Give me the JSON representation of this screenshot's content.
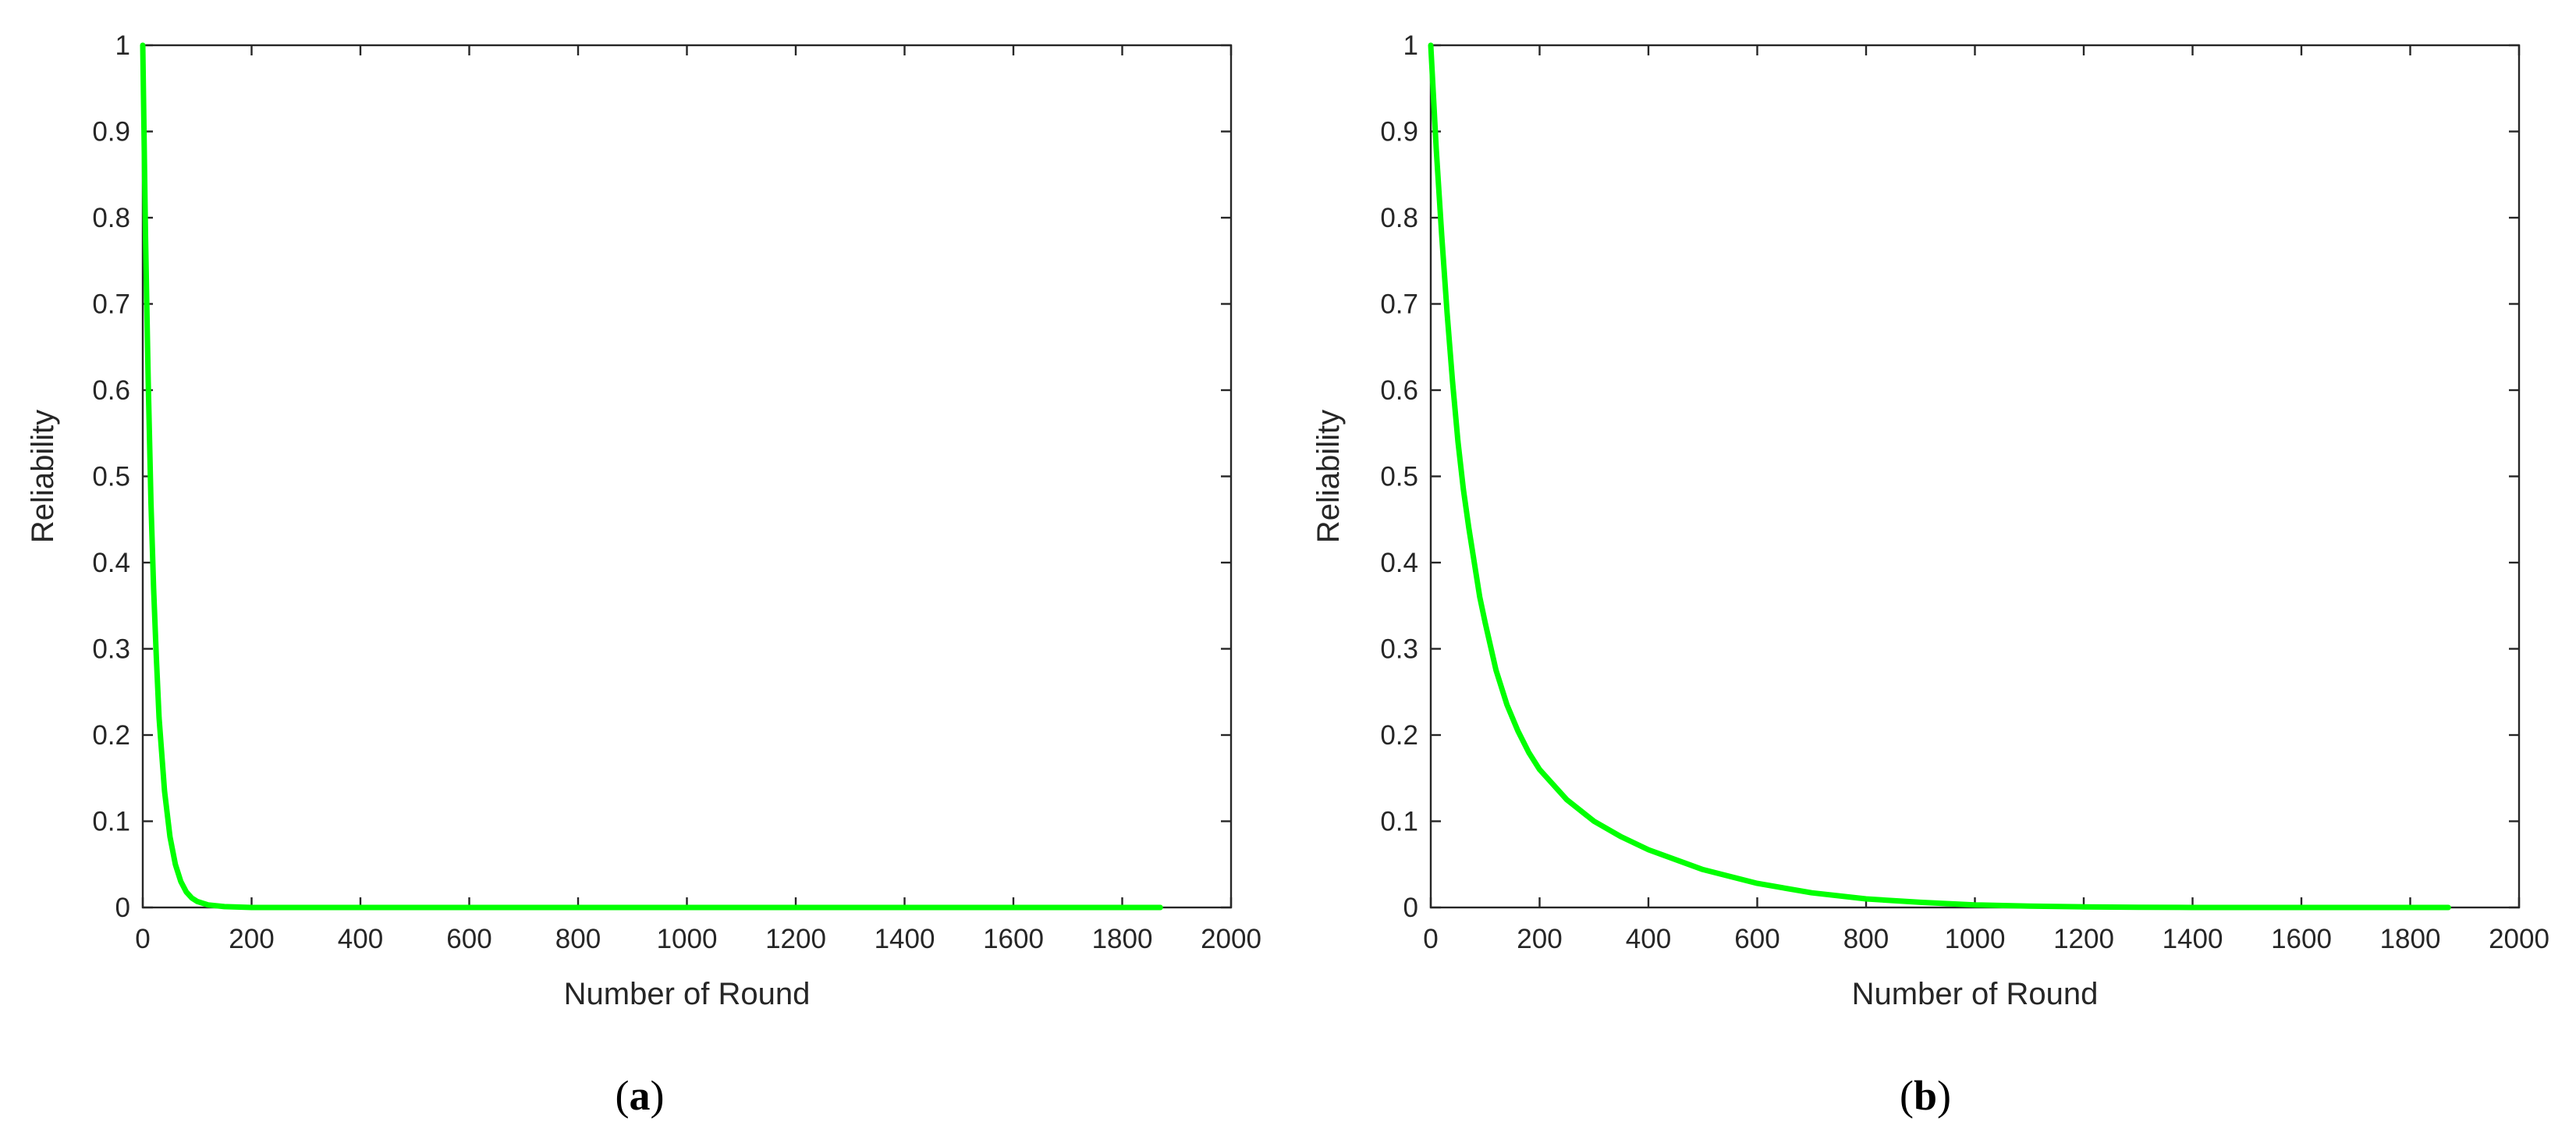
{
  "chart_data": [
    {
      "type": "line",
      "panel_label": "a",
      "xlabel": "Number of Round",
      "ylabel": "Reliability",
      "xlim": [
        0,
        2000
      ],
      "ylim": [
        0,
        1
      ],
      "xticks": [
        0,
        200,
        400,
        600,
        800,
        1000,
        1200,
        1400,
        1600,
        1800,
        2000
      ],
      "yticks": [
        0,
        0.1,
        0.2,
        0.3,
        0.4,
        0.5,
        0.6,
        0.7,
        0.8,
        0.9,
        1
      ],
      "xtick_labels": [
        "0",
        "200",
        "400",
        "600",
        "800",
        "1000",
        "1200",
        "1400",
        "1600",
        "1800",
        "2000"
      ],
      "ytick_labels": [
        "0",
        "0.1",
        "0.2",
        "0.3",
        "0.4",
        "0.5",
        "0.6",
        "0.7",
        "0.8",
        "0.9",
        "1"
      ],
      "grid": false,
      "series": [
        {
          "color": "#00ff00",
          "x": [
            0,
            5,
            10,
            15,
            20,
            25,
            30,
            40,
            50,
            60,
            70,
            80,
            90,
            100,
            120,
            150,
            200,
            300,
            500,
            1000,
            1500,
            1870
          ],
          "y": [
            1.0,
            0.78,
            0.61,
            0.47,
            0.37,
            0.29,
            0.22,
            0.135,
            0.082,
            0.05,
            0.03,
            0.018,
            0.011,
            0.007,
            0.003,
            0.001,
            0.0,
            0.0,
            0.0,
            0.0,
            0.0,
            0.0
          ]
        }
      ]
    },
    {
      "type": "line",
      "panel_label": "b",
      "xlabel": "Number of Round",
      "ylabel": "Reliability",
      "xlim": [
        0,
        2000
      ],
      "ylim": [
        0,
        1
      ],
      "xticks": [
        0,
        200,
        400,
        600,
        800,
        1000,
        1200,
        1400,
        1600,
        1800,
        2000
      ],
      "yticks": [
        0,
        0.1,
        0.2,
        0.3,
        0.4,
        0.5,
        0.6,
        0.7,
        0.8,
        0.9,
        1
      ],
      "xtick_labels": [
        "0",
        "200",
        "400",
        "600",
        "800",
        "1000",
        "1200",
        "1400",
        "1600",
        "1800",
        "2000"
      ],
      "ytick_labels": [
        "0",
        "0.1",
        "0.2",
        "0.3",
        "0.4",
        "0.5",
        "0.6",
        "0.7",
        "0.8",
        "0.9",
        "1"
      ],
      "grid": false,
      "series": [
        {
          "color": "#00ff00",
          "x": [
            0,
            10,
            20,
            30,
            40,
            50,
            60,
            70,
            80,
            90,
            100,
            120,
            140,
            160,
            180,
            200,
            250,
            300,
            350,
            400,
            500,
            600,
            700,
            800,
            900,
            1000,
            1100,
            1200,
            1300,
            1400,
            1600,
            1870
          ],
          "y": [
            1.0,
            0.88,
            0.78,
            0.69,
            0.61,
            0.54,
            0.485,
            0.44,
            0.4,
            0.36,
            0.33,
            0.275,
            0.235,
            0.205,
            0.18,
            0.16,
            0.125,
            0.1,
            0.082,
            0.067,
            0.044,
            0.028,
            0.017,
            0.01,
            0.006,
            0.003,
            0.0015,
            0.0007,
            0.0003,
            0.0,
            0.0,
            0.0
          ]
        }
      ]
    }
  ]
}
